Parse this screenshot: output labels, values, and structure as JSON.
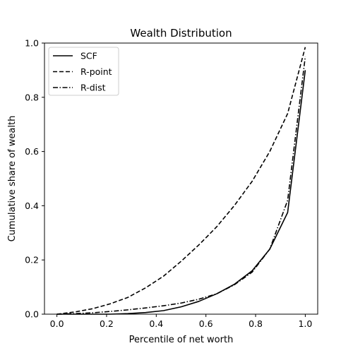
{
  "chart_data": {
    "type": "line",
    "title": "Wealth Distribution",
    "xlabel": "Percentile of net worth",
    "ylabel": "Cumulative share of wealth",
    "xlim": [
      -0.05,
      1.05
    ],
    "ylim": [
      0.0,
      1.0
    ],
    "xticks": [
      0.0,
      0.2,
      0.4,
      0.6,
      0.8,
      1.0
    ],
    "xtick_labels": [
      "0.0",
      "0.2",
      "0.4",
      "0.6",
      "0.8",
      "1.0"
    ],
    "yticks": [
      0.0,
      0.2,
      0.4,
      0.6,
      0.8,
      1.0
    ],
    "ytick_labels": [
      "0.0",
      "0.2",
      "0.4",
      "0.6",
      "0.8",
      "1.0"
    ],
    "grid": false,
    "legend_position": "top-left",
    "series": [
      {
        "name": "SCF",
        "style": "solid",
        "color": "#000000",
        "x": [
          0.0,
          0.071,
          0.143,
          0.214,
          0.286,
          0.357,
          0.429,
          0.5,
          0.571,
          0.643,
          0.714,
          0.786,
          0.857,
          0.929,
          1.0
        ],
        "y": [
          0.0,
          0.0,
          0.0,
          0.0,
          0.002,
          0.006,
          0.013,
          0.027,
          0.047,
          0.075,
          0.11,
          0.16,
          0.24,
          0.375,
          0.9
        ]
      },
      {
        "name": "R-point",
        "style": "dashed",
        "color": "#000000",
        "x": [
          0.0,
          0.071,
          0.143,
          0.214,
          0.286,
          0.357,
          0.429,
          0.5,
          0.571,
          0.643,
          0.714,
          0.786,
          0.857,
          0.929,
          1.0
        ],
        "y": [
          0.0,
          0.008,
          0.02,
          0.038,
          0.062,
          0.097,
          0.14,
          0.195,
          0.255,
          0.322,
          0.4,
          0.49,
          0.6,
          0.74,
          0.985
        ]
      },
      {
        "name": "R-dist",
        "style": "dashdot",
        "color": "#000000",
        "x": [
          0.0,
          0.071,
          0.143,
          0.214,
          0.286,
          0.357,
          0.429,
          0.5,
          0.571,
          0.643,
          0.714,
          0.786,
          0.857,
          0.929,
          1.0
        ],
        "y": [
          0.0,
          0.002,
          0.005,
          0.01,
          0.016,
          0.023,
          0.031,
          0.041,
          0.055,
          0.075,
          0.108,
          0.155,
          0.24,
          0.42,
          0.95
        ]
      }
    ]
  }
}
